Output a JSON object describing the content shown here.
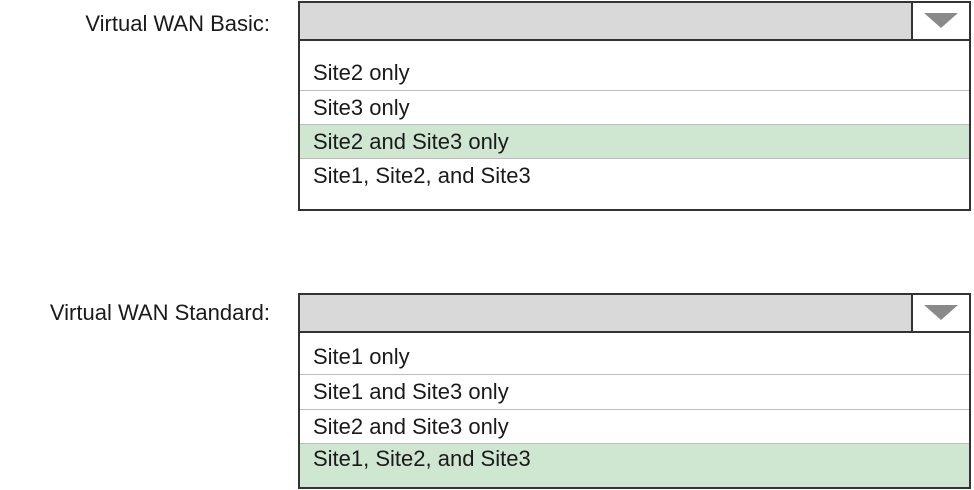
{
  "colors": {
    "selected": "#cfe6d1",
    "header": "#d9d9d9"
  },
  "basic": {
    "label": "Virtual WAN Basic:",
    "options": [
      "Site2 only",
      "Site3 only",
      "Site2 and Site3 only",
      "Site1, Site2, and Site3"
    ],
    "selected": "Site2 and Site3 only"
  },
  "standard": {
    "label": "Virtual WAN Standard:",
    "options": [
      "Site1 only",
      "Site1 and Site3 only",
      "Site2 and Site3 only",
      "Site1, Site2, and Site3"
    ],
    "selected": "Site1, Site2, and Site3"
  }
}
